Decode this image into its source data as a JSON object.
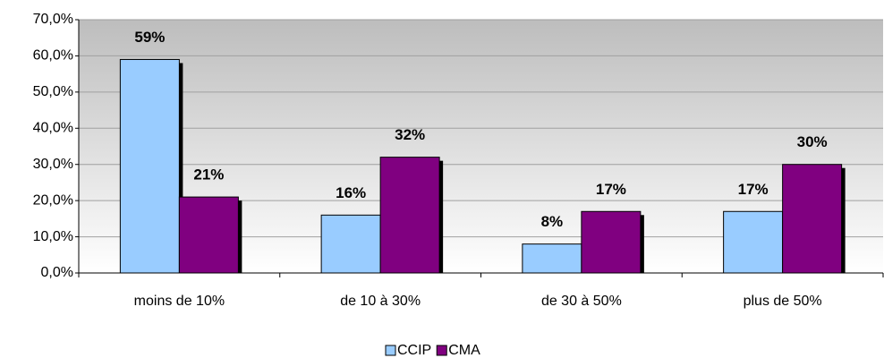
{
  "chart_data": {
    "type": "bar",
    "categories": [
      "moins de 10%",
      "de 10 à 30%",
      "de 30 à 50%",
      "plus de 50%"
    ],
    "series": [
      {
        "name": "CCIP",
        "color": "#99ccff",
        "values": [
          59,
          16,
          8,
          17
        ],
        "value_labels": [
          "59%",
          "16%",
          "8%",
          "17%"
        ]
      },
      {
        "name": "CMA",
        "color": "#800080",
        "values": [
          21,
          32,
          17,
          30
        ],
        "value_labels": [
          "21%",
          "32%",
          "17%",
          "30%"
        ]
      }
    ],
    "ylim": [
      0,
      70
    ],
    "yticks": [
      {
        "value": 0,
        "label": "0,0%"
      },
      {
        "value": 10,
        "label": "10,0%"
      },
      {
        "value": 20,
        "label": "20,0%"
      },
      {
        "value": 30,
        "label": "30,0%"
      },
      {
        "value": 40,
        "label": "40,0%"
      },
      {
        "value": 50,
        "label": "50,0%"
      },
      {
        "value": 60,
        "label": "60,0%"
      },
      {
        "value": 70,
        "label": "70,0%"
      }
    ],
    "grid": true,
    "legend": "bottom"
  }
}
